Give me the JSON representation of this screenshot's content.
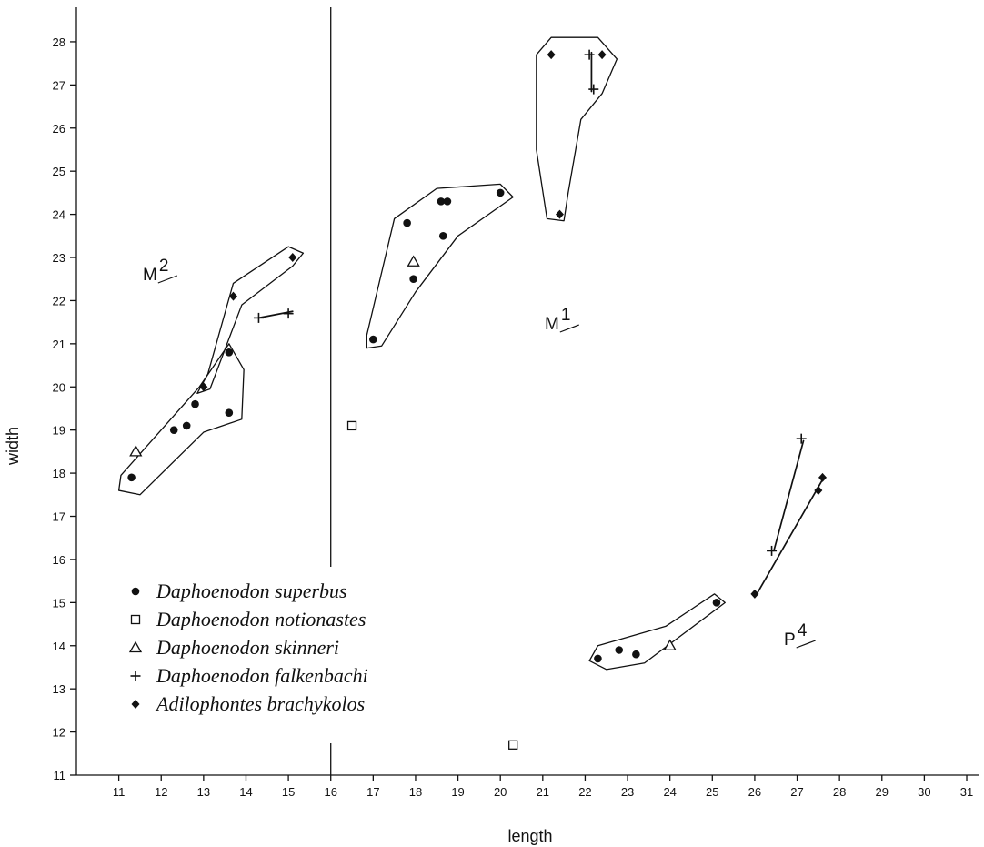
{
  "chart_data": {
    "type": "scatter",
    "xlabel": "length",
    "ylabel": "width",
    "xlim": [
      10,
      31.3
    ],
    "ylim": [
      11,
      28.8
    ],
    "xticks": [
      11,
      12,
      13,
      14,
      15,
      16,
      17,
      18,
      19,
      20,
      21,
      22,
      23,
      24,
      25,
      26,
      27,
      28,
      29,
      30,
      31
    ],
    "yticks": [
      11,
      12,
      13,
      14,
      15,
      16,
      17,
      18,
      19,
      20,
      21,
      22,
      23,
      24,
      25,
      26,
      27,
      28
    ],
    "grid": false,
    "legend_position": "bottom-left",
    "divider_x": 16,
    "series": [
      {
        "name": "Daphoenodon superbus",
        "marker": "filled-circle",
        "points": [
          [
            11.3,
            17.9
          ],
          [
            12.3,
            19.0
          ],
          [
            12.6,
            19.1
          ],
          [
            12.8,
            19.6
          ],
          [
            13.6,
            19.4
          ],
          [
            13.6,
            20.8
          ],
          [
            17.0,
            21.1
          ],
          [
            17.8,
            23.8
          ],
          [
            17.95,
            22.5
          ],
          [
            18.6,
            24.3
          ],
          [
            18.75,
            24.3
          ],
          [
            18.65,
            23.5
          ],
          [
            20.0,
            24.5
          ],
          [
            22.3,
            13.7
          ],
          [
            22.8,
            13.9
          ],
          [
            23.2,
            13.8
          ],
          [
            25.1,
            15.0
          ]
        ]
      },
      {
        "name": "Daphoenodon notionastes",
        "marker": "open-square",
        "points": [
          [
            16.5,
            19.1
          ],
          [
            20.3,
            11.7
          ]
        ]
      },
      {
        "name": "Daphoenodon skinneri",
        "marker": "open-triangle",
        "points": [
          [
            11.4,
            18.5
          ],
          [
            17.95,
            22.9
          ],
          [
            24.0,
            14.0
          ]
        ]
      },
      {
        "name": "Daphoenodon falkenbachi",
        "marker": "plus",
        "points": [
          [
            14.3,
            21.6
          ],
          [
            15.0,
            21.7
          ],
          [
            22.1,
            27.7
          ],
          [
            22.2,
            26.9
          ],
          [
            26.4,
            16.2
          ],
          [
            27.1,
            18.8
          ]
        ]
      },
      {
        "name": "Adilophontes brachykolos",
        "marker": "filled-diamond",
        "points": [
          [
            13.0,
            20.0
          ],
          [
            13.7,
            22.1
          ],
          [
            15.1,
            23.0
          ],
          [
            21.2,
            27.7
          ],
          [
            21.4,
            24.0
          ],
          [
            22.4,
            27.7
          ],
          [
            26.0,
            15.2
          ],
          [
            27.5,
            17.6
          ],
          [
            27.6,
            17.9
          ]
        ]
      }
    ],
    "annotations": [
      {
        "base": "M",
        "sup": "2"
      },
      {
        "base": "M",
        "sup": "1"
      },
      {
        "base": "P",
        "sup": "4"
      }
    ]
  }
}
